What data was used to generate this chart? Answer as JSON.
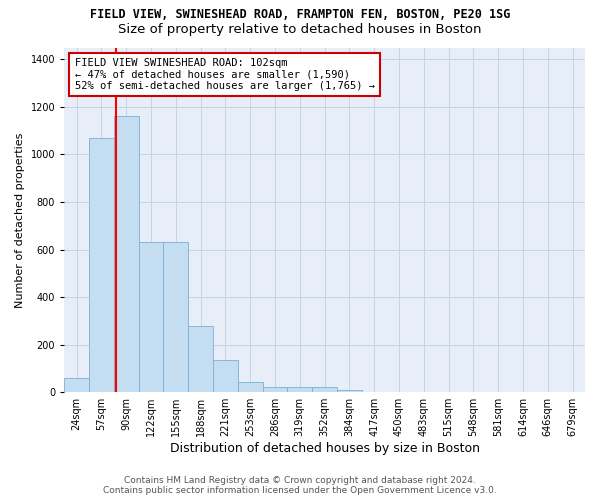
{
  "title": "FIELD VIEW, SWINESHEAD ROAD, FRAMPTON FEN, BOSTON, PE20 1SG",
  "subtitle": "Size of property relative to detached houses in Boston",
  "xlabel": "Distribution of detached houses by size in Boston",
  "ylabel": "Number of detached properties",
  "categories": [
    "24sqm",
    "57sqm",
    "90sqm",
    "122sqm",
    "155sqm",
    "188sqm",
    "221sqm",
    "253sqm",
    "286sqm",
    "319sqm",
    "352sqm",
    "384sqm",
    "417sqm",
    "450sqm",
    "483sqm",
    "515sqm",
    "548sqm",
    "581sqm",
    "614sqm",
    "646sqm",
    "679sqm"
  ],
  "values": [
    60,
    1070,
    1160,
    630,
    630,
    280,
    135,
    45,
    20,
    20,
    20,
    10,
    0,
    0,
    0,
    0,
    0,
    0,
    0,
    0,
    0
  ],
  "bar_color": "#c5ddf0",
  "bar_edge_color": "#7ab0d4",
  "red_line_x": 2.0,
  "annotation_line1": "FIELD VIEW SWINESHEAD ROAD: 102sqm",
  "annotation_line2": "← 47% of detached houses are smaller (1,590)",
  "annotation_line3": "52% of semi-detached houses are larger (1,765) →",
  "annotation_box_color": "#ffffff",
  "annotation_border_color": "#cc0000",
  "ylim": [
    0,
    1450
  ],
  "yticks": [
    0,
    200,
    400,
    600,
    800,
    1000,
    1200,
    1400
  ],
  "grid_color": "#c8d4e4",
  "background_color": "#e8eef8",
  "footer_line1": "Contains HM Land Registry data © Crown copyright and database right 2024.",
  "footer_line2": "Contains public sector information licensed under the Open Government Licence v3.0.",
  "title_fontsize": 8.5,
  "subtitle_fontsize": 9.5,
  "xlabel_fontsize": 9,
  "ylabel_fontsize": 8,
  "tick_fontsize": 7,
  "footer_fontsize": 6.5,
  "annotation_fontsize": 7.5
}
